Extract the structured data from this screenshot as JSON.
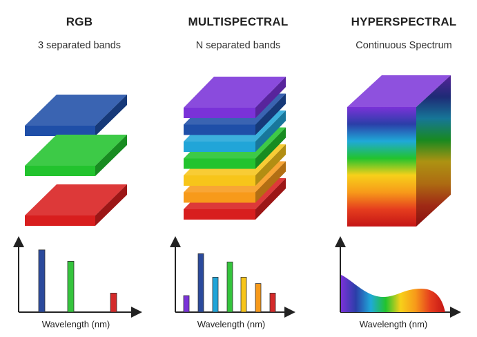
{
  "columns": [
    {
      "title": "RGB",
      "subtitle": "3 separated bands",
      "axis_label": "Wavelength (nm)"
    },
    {
      "title": "MULTISPECTRAL",
      "subtitle": "N separated bands",
      "axis_label": "Wavelength (nm)"
    },
    {
      "title": "HYPERSPECTRAL",
      "subtitle": "Continuous Spectrum",
      "axis_label": "Wavelength (nm)"
    }
  ],
  "rgb_layers": [
    {
      "band": "blue",
      "color": "#1f4fa8"
    },
    {
      "band": "green",
      "color": "#22c32e"
    },
    {
      "band": "red",
      "color": "#d81e1e"
    }
  ],
  "multispectral_layers": [
    {
      "band": "violet",
      "color": "#7a32d8"
    },
    {
      "band": "blue",
      "color": "#1f4fa8"
    },
    {
      "band": "cyan",
      "color": "#21a5d8"
    },
    {
      "band": "green",
      "color": "#22c32e"
    },
    {
      "band": "yellow",
      "color": "#f7c51a"
    },
    {
      "band": "orange",
      "color": "#f79a1a"
    },
    {
      "band": "red",
      "color": "#d81e1e"
    }
  ],
  "rgb_spectrum_bars": [
    {
      "band": "blue",
      "color": "#2b4a9c",
      "relative_height": 0.98
    },
    {
      "band": "green",
      "color": "#35c43d",
      "relative_height": 0.8
    },
    {
      "band": "red",
      "color": "#d42a2a",
      "relative_height": 0.3
    }
  ],
  "multispectral_spectrum_bars": [
    {
      "band": "violet",
      "color": "#7a32d8",
      "relative_height": 0.26
    },
    {
      "band": "blue",
      "color": "#2b4a9c",
      "relative_height": 0.92
    },
    {
      "band": "cyan",
      "color": "#21a5d8",
      "relative_height": 0.55
    },
    {
      "band": "green",
      "color": "#35c43d",
      "relative_height": 0.79
    },
    {
      "band": "yellow",
      "color": "#f7c51a",
      "relative_height": 0.55
    },
    {
      "band": "orange",
      "color": "#f79a1a",
      "relative_height": 0.45
    },
    {
      "band": "red",
      "color": "#d42a2a",
      "relative_height": 0.3
    }
  ],
  "hyperspectral_gradient": [
    "#7a32d8",
    "#2b3ea8",
    "#1fa9d8",
    "#22c32e",
    "#f7d01a",
    "#f79a1a",
    "#e53d1e",
    "#c41515"
  ],
  "axis_color": "#222222"
}
